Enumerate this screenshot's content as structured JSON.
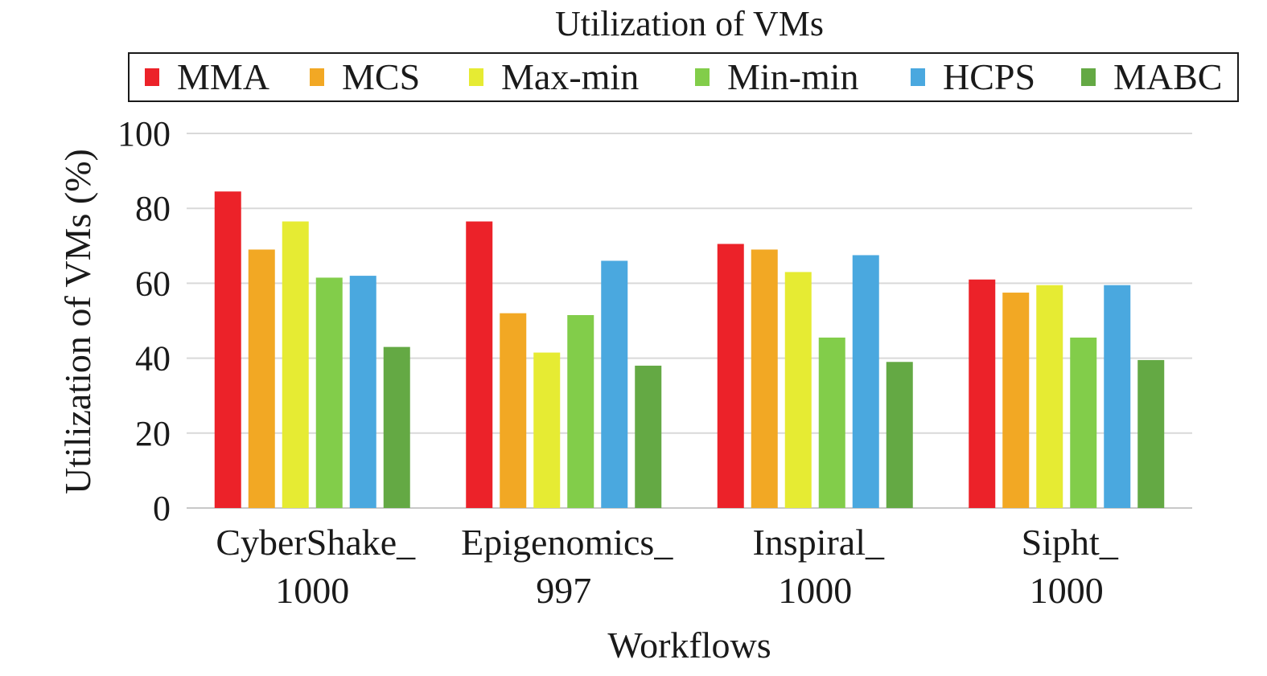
{
  "chart_data": {
    "type": "bar",
    "title": "Utilization of VMs",
    "xlabel": "Workflows",
    "ylabel": "Utilization of VMs (%)",
    "ylim": [
      0,
      100
    ],
    "yticks": [
      0,
      20,
      40,
      60,
      80,
      100
    ],
    "grid": true,
    "legend_position": "top",
    "categories": [
      [
        "CyberShake_",
        "1000"
      ],
      [
        "Epigenomics_",
        "997"
      ],
      [
        "Inspiral_",
        "1000"
      ],
      [
        "Sipht_",
        "1000"
      ]
    ],
    "series": [
      {
        "name": "MMA",
        "color": "#ec2229",
        "values": [
          84.5,
          76.5,
          70.5,
          61
        ]
      },
      {
        "name": "MCS",
        "color": "#f2a824",
        "values": [
          69,
          52,
          69,
          57.5
        ]
      },
      {
        "name": "Max-min",
        "color": "#e6eb33",
        "values": [
          76.5,
          41.5,
          63,
          59.5
        ]
      },
      {
        "name": "Min-min",
        "color": "#82cd4a",
        "values": [
          61.5,
          51.5,
          45.5,
          45.5
        ]
      },
      {
        "name": "HCPS",
        "color": "#4aa8df",
        "values": [
          62,
          66,
          67.5,
          59.5
        ]
      },
      {
        "name": "MABC",
        "color": "#64a944",
        "values": [
          43,
          38,
          39,
          39.5
        ]
      }
    ]
  }
}
